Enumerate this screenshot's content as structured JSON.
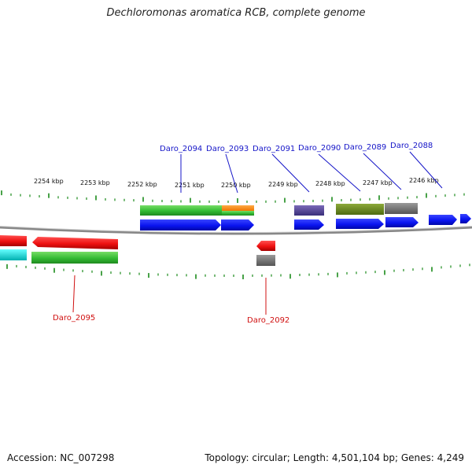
{
  "title": "Dechloromonas aromatica RCB, complete genome",
  "ruler_labels": [
    "2254 kbp",
    "2253 kbp",
    "2252 kbp",
    "2251 kbp",
    "2250 kbp",
    "2249 kbp",
    "2248 kbp",
    "2247 kbp",
    "2246 kbp"
  ],
  "genes_top": [
    "Daro_2094",
    "Daro_2093",
    "Daro_2091",
    "Daro_2090",
    "Daro_2089",
    "Daro_2088"
  ],
  "genes_bottom": [
    "Daro_2095",
    "Daro_2092"
  ],
  "colors": {
    "cds_forward": "#0a14f0",
    "cds_reverse": "#ee1111",
    "cog_green": "#33bb33",
    "cog_orange": "#ff8811",
    "cog_purple": "#55449a",
    "cog_olive": "#6b8a1f",
    "cog_grey": "#777777",
    "cog_cyan": "#11dddd",
    "tick": "#1a8a1a",
    "backbone": "#888888",
    "label_forward": "#1515c8",
    "label_reverse": "#d01010"
  },
  "footer": {
    "accession": "Accession: NC_007298",
    "topology": "Topology: circular; Length: 4,501,104 bp; Genes: 4,249"
  }
}
